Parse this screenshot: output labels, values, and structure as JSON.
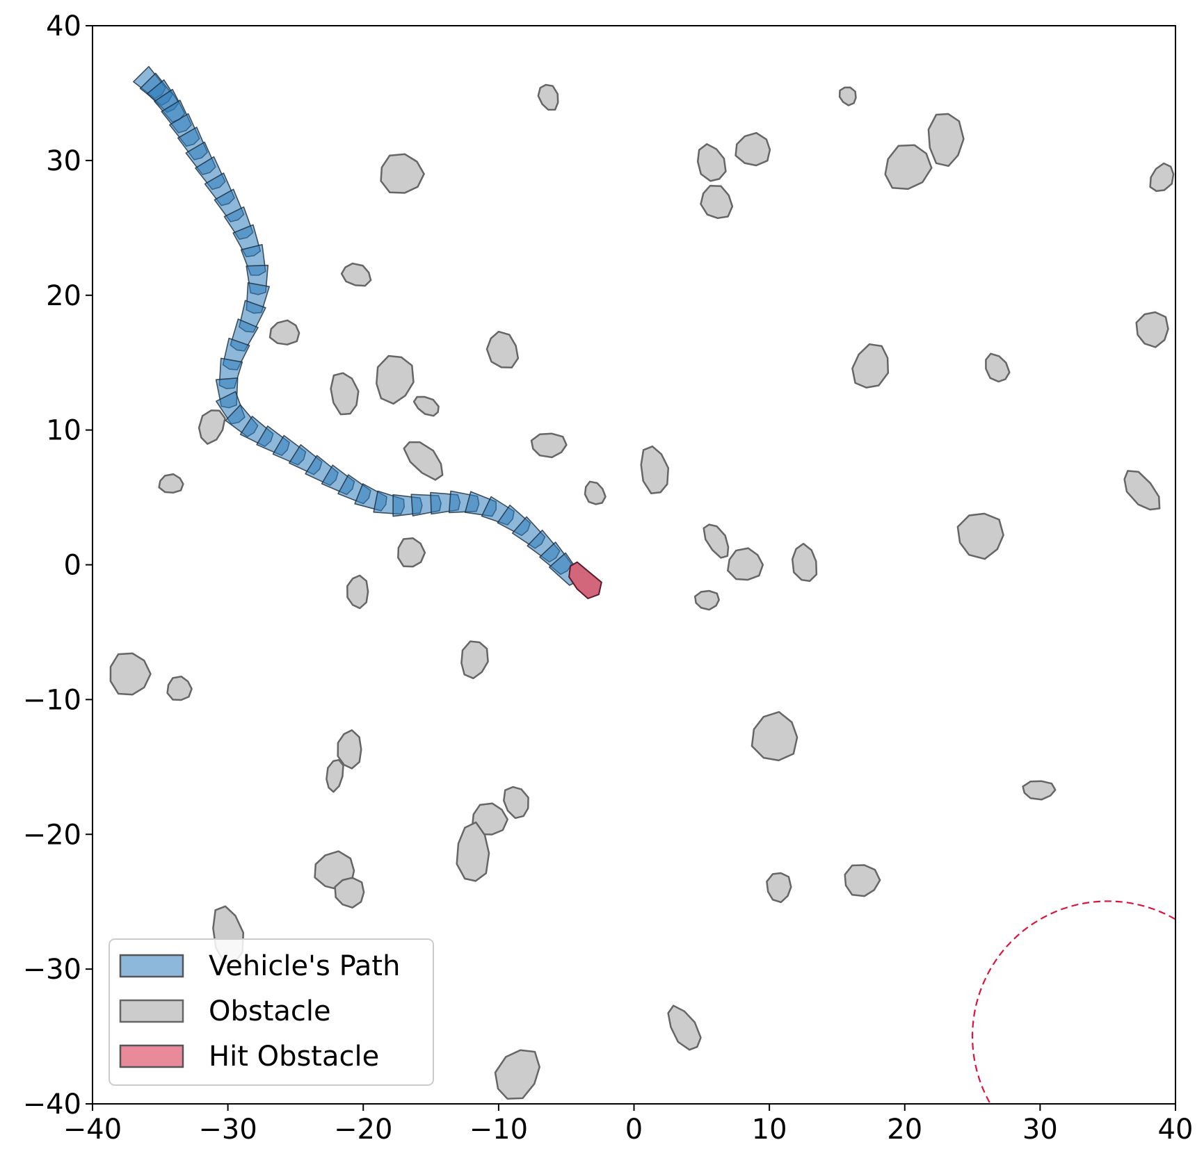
{
  "chart_data": {
    "type": "scatter",
    "title": "",
    "xlabel": "",
    "ylabel": "",
    "xlim": [
      -40,
      40
    ],
    "ylim": [
      -40,
      40
    ],
    "grid": false,
    "x_ticks": [
      -40,
      -30,
      -20,
      -10,
      0,
      10,
      20,
      30,
      40
    ],
    "y_ticks": [
      -40,
      -30,
      -20,
      -10,
      0,
      10,
      20,
      30,
      40
    ],
    "x_tick_labels": [
      "−40",
      "−30",
      "−20",
      "−10",
      "0",
      "10",
      "20",
      "30",
      "40"
    ],
    "y_tick_labels": [
      "−40",
      "−30",
      "−20",
      "−10",
      "0",
      "10",
      "20",
      "30",
      "40"
    ],
    "legend": {
      "position": "lower-left",
      "entries": [
        {
          "label": "Vehicle's Path",
          "color": "#8db8dc",
          "edge": "#555555"
        },
        {
          "label": "Obstacle",
          "color": "#cccccc",
          "edge": "#666666"
        },
        {
          "label": "Hit Obstacle",
          "color": "#e88a9a",
          "edge": "#555555"
        }
      ]
    },
    "colors": {
      "path_fill": "#2f7ebc",
      "path_edge": "#1a2a3a",
      "obstacle_fill": "#cccccc",
      "obstacle_edge": "#666666",
      "hit_fill": "#d2667a",
      "hit_edge": "#5a1a2a",
      "goal_circle": "#dc143c"
    },
    "goal": {
      "center": [
        35,
        -35
      ],
      "radius": 10,
      "style": "dashed"
    },
    "vehicle_path": [
      [
        -35.7,
        35.7
      ],
      [
        -35.2,
        35.2
      ],
      [
        -34.7,
        34.7
      ],
      [
        -34.2,
        34.0
      ],
      [
        -33.7,
        33.2
      ],
      [
        -33.1,
        32.2
      ],
      [
        -32.5,
        31.2
      ],
      [
        -31.9,
        30.1
      ],
      [
        -31.2,
        29.0
      ],
      [
        -30.5,
        27.8
      ],
      [
        -29.8,
        26.6
      ],
      [
        -29.1,
        25.3
      ],
      [
        -28.5,
        24.0
      ],
      [
        -28.0,
        22.6
      ],
      [
        -27.8,
        21.2
      ],
      [
        -27.9,
        19.8
      ],
      [
        -28.3,
        18.4
      ],
      [
        -28.9,
        17.0
      ],
      [
        -29.5,
        15.6
      ],
      [
        -29.9,
        14.2
      ],
      [
        -30.0,
        12.8
      ],
      [
        -29.7,
        11.6
      ],
      [
        -28.9,
        10.6
      ],
      [
        -27.8,
        9.8
      ],
      [
        -26.6,
        9.1
      ],
      [
        -25.4,
        8.4
      ],
      [
        -24.2,
        7.7
      ],
      [
        -23.0,
        6.9
      ],
      [
        -21.8,
        6.2
      ],
      [
        -20.6,
        5.5
      ],
      [
        -19.4,
        4.9
      ],
      [
        -18.1,
        4.5
      ],
      [
        -16.8,
        4.4
      ],
      [
        -15.4,
        4.5
      ],
      [
        -14.0,
        4.6
      ],
      [
        -12.6,
        4.6
      ],
      [
        -11.3,
        4.4
      ],
      [
        -10.0,
        3.9
      ],
      [
        -8.8,
        3.2
      ],
      [
        -7.7,
        2.3
      ],
      [
        -6.6,
        1.3
      ],
      [
        -5.7,
        0.4
      ],
      [
        -5.0,
        -0.4
      ]
    ],
    "hit_obstacle": [
      [
        -4.7,
        -0.1
      ],
      [
        -4.2,
        0.2
      ],
      [
        -2.4,
        -1.3
      ],
      [
        -2.6,
        -2.2
      ],
      [
        -3.4,
        -2.5
      ],
      [
        -4.2,
        -1.8
      ],
      [
        -4.8,
        -0.9
      ]
    ],
    "obstacles": [
      {
        "cx": -6.3,
        "cy": 34.7,
        "rx": 0.7,
        "ry": 1.0,
        "rot": 20
      },
      {
        "cx": 15.8,
        "cy": 34.8,
        "rx": 0.6,
        "ry": 0.7,
        "rot": 30
      },
      {
        "cx": -17.2,
        "cy": 29.0,
        "rx": 1.6,
        "ry": 1.5,
        "rot": 0
      },
      {
        "cx": 5.7,
        "cy": 29.8,
        "rx": 1.0,
        "ry": 1.4,
        "rot": 20
      },
      {
        "cx": 8.8,
        "cy": 30.8,
        "rx": 1.3,
        "ry": 1.2,
        "rot": 0
      },
      {
        "cx": 6.1,
        "cy": 26.9,
        "rx": 1.1,
        "ry": 1.3,
        "rot": 30
      },
      {
        "cx": 20.2,
        "cy": 29.5,
        "rx": 1.6,
        "ry": 1.8,
        "rot": -45
      },
      {
        "cx": 23.0,
        "cy": 31.6,
        "rx": 1.3,
        "ry": 2.0,
        "rot": 0
      },
      {
        "cx": 39.0,
        "cy": 28.7,
        "rx": 0.8,
        "ry": 1.1,
        "rot": -30
      },
      {
        "cx": -20.5,
        "cy": 21.5,
        "rx": 1.1,
        "ry": 0.8,
        "rot": -20
      },
      {
        "cx": -25.8,
        "cy": 17.2,
        "rx": 1.1,
        "ry": 0.9,
        "rot": 0
      },
      {
        "cx": -9.7,
        "cy": 15.9,
        "rx": 1.1,
        "ry": 1.4,
        "rot": 20
      },
      {
        "cx": 38.3,
        "cy": 17.5,
        "rx": 1.2,
        "ry": 1.3,
        "rot": 0
      },
      {
        "cx": -17.7,
        "cy": 13.8,
        "rx": 1.4,
        "ry": 1.8,
        "rot": -10
      },
      {
        "cx": -21.4,
        "cy": 12.7,
        "rx": 1.0,
        "ry": 1.6,
        "rot": 10
      },
      {
        "cx": 17.5,
        "cy": 14.7,
        "rx": 1.3,
        "ry": 1.7,
        "rot": -20
      },
      {
        "cx": 26.8,
        "cy": 14.6,
        "rx": 0.8,
        "ry": 1.1,
        "rot": 30
      },
      {
        "cx": -15.3,
        "cy": 11.8,
        "rx": 1.0,
        "ry": 0.6,
        "rot": -30
      },
      {
        "cx": -31.2,
        "cy": 10.3,
        "rx": 0.9,
        "ry": 1.3,
        "rot": -20
      },
      {
        "cx": -6.3,
        "cy": 8.9,
        "rx": 1.3,
        "ry": 0.9,
        "rot": 0
      },
      {
        "cx": -15.5,
        "cy": 7.8,
        "rx": 0.9,
        "ry": 1.8,
        "rot": 45
      },
      {
        "cx": 1.5,
        "cy": 7.0,
        "rx": 1.0,
        "ry": 1.8,
        "rot": 10
      },
      {
        "cx": -34.2,
        "cy": 6.0,
        "rx": 0.9,
        "ry": 0.7,
        "rot": 0
      },
      {
        "cx": -2.9,
        "cy": 5.3,
        "rx": 0.7,
        "ry": 0.9,
        "rot": 30
      },
      {
        "cx": 37.5,
        "cy": 5.5,
        "rx": 0.9,
        "ry": 1.8,
        "rot": 40
      },
      {
        "cx": 25.6,
        "cy": 2.2,
        "rx": 1.7,
        "ry": 1.7,
        "rot": 0
      },
      {
        "cx": 6.1,
        "cy": 1.8,
        "rx": 0.7,
        "ry": 1.4,
        "rot": 30
      },
      {
        "cx": -16.5,
        "cy": 0.9,
        "rx": 1.0,
        "ry": 1.1,
        "rot": 0
      },
      {
        "cx": 8.2,
        "cy": 0.0,
        "rx": 1.3,
        "ry": 1.2,
        "rot": 0
      },
      {
        "cx": 12.6,
        "cy": 0.1,
        "rx": 0.9,
        "ry": 1.4,
        "rot": 10
      },
      {
        "cx": -20.4,
        "cy": -2.0,
        "rx": 0.8,
        "ry": 1.2,
        "rot": 0
      },
      {
        "cx": 5.4,
        "cy": -2.6,
        "rx": 0.9,
        "ry": 0.7,
        "rot": 0
      },
      {
        "cx": -11.8,
        "cy": -7.0,
        "rx": 1.0,
        "ry": 1.4,
        "rot": -10
      },
      {
        "cx": -37.3,
        "cy": -8.1,
        "rx": 1.5,
        "ry": 1.6,
        "rot": 0
      },
      {
        "cx": -33.6,
        "cy": -9.2,
        "rx": 0.9,
        "ry": 0.9,
        "rot": 0
      },
      {
        "cx": 10.4,
        "cy": -12.8,
        "rx": 1.7,
        "ry": 1.8,
        "rot": 0
      },
      {
        "cx": -21.0,
        "cy": -13.7,
        "rx": 0.9,
        "ry": 1.4,
        "rot": 0
      },
      {
        "cx": -22.1,
        "cy": -15.6,
        "rx": 0.6,
        "ry": 1.2,
        "rot": -10
      },
      {
        "cx": 29.9,
        "cy": -16.7,
        "rx": 1.2,
        "ry": 0.7,
        "rot": 0
      },
      {
        "cx": -8.7,
        "cy": -17.6,
        "rx": 0.9,
        "ry": 1.2,
        "rot": 20
      },
      {
        "cx": -10.7,
        "cy": -18.9,
        "rx": 1.3,
        "ry": 1.2,
        "rot": 0
      },
      {
        "cx": -11.9,
        "cy": -21.4,
        "rx": 1.2,
        "ry": 2.2,
        "rot": 0
      },
      {
        "cx": -22.1,
        "cy": -22.7,
        "rx": 1.5,
        "ry": 1.4,
        "rot": 0
      },
      {
        "cx": -21.0,
        "cy": -24.3,
        "rx": 1.1,
        "ry": 1.1,
        "rot": 0
      },
      {
        "cx": 10.7,
        "cy": -23.9,
        "rx": 0.9,
        "ry": 1.1,
        "rot": 0
      },
      {
        "cx": 16.8,
        "cy": -23.4,
        "rx": 1.3,
        "ry": 1.2,
        "rot": 0
      },
      {
        "cx": -30.0,
        "cy": -27.5,
        "rx": 1.1,
        "ry": 2.2,
        "rot": 10
      },
      {
        "cx": 3.7,
        "cy": -34.4,
        "rx": 0.9,
        "ry": 1.8,
        "rot": 30
      },
      {
        "cx": -8.6,
        "cy": -37.8,
        "rx": 1.5,
        "ry": 2.0,
        "rot": -30
      }
    ]
  }
}
